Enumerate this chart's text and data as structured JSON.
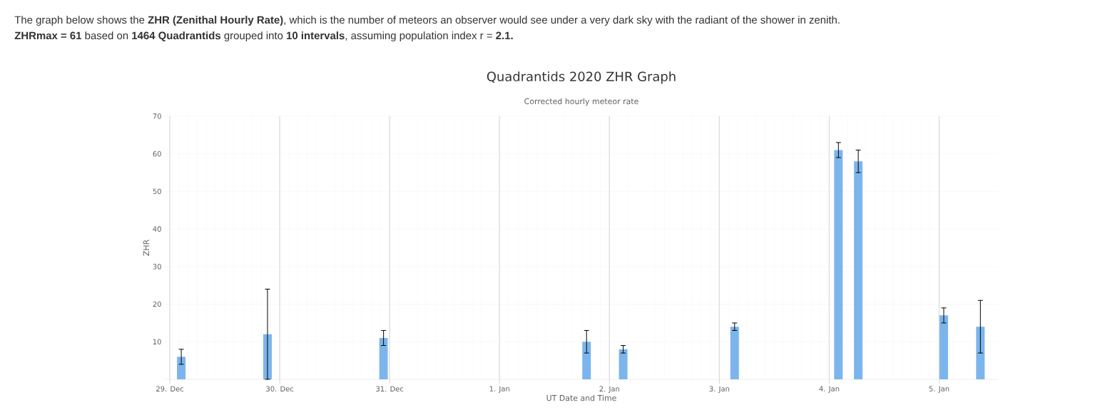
{
  "chart_data": {
    "type": "bar",
    "title": "Quadrantids 2020 ZHR Graph",
    "subtitle": "Corrected hourly meteor rate",
    "xlabel": "UT Date and Time",
    "ylabel": "ZHR",
    "annotations": [
      "The graph below shows the **ZHR (Zenithal Hourly Rate)**, which is the number of meteors an observer would see under a very dark sky with the radiant of the shower in zenith.",
      "**ZHRmax = 61** based on **1464 Quadrantids** grouped into **10 intervals**, assuming population index r = **2.1.**"
    ],
    "x": [
      "2019-12-29T02:30",
      "2019-12-29T21:20",
      "2019-12-30T22:40",
      "2020-01-01T19:00",
      "2020-01-02T03:00",
      "2020-01-03T03:20",
      "2020-01-04T02:00",
      "2020-01-04T06:20",
      "2020-01-05T01:00",
      "2020-01-05T09:00"
    ],
    "values": [
      6,
      12,
      11,
      10,
      8,
      14,
      61,
      58,
      17,
      14
    ],
    "errors": [
      [
        4,
        8
      ],
      [
        0,
        24
      ],
      [
        9,
        13
      ],
      [
        7,
        13
      ],
      [
        7,
        9
      ],
      [
        13,
        15
      ],
      [
        59,
        63
      ],
      [
        55,
        61
      ],
      [
        15,
        19
      ],
      [
        7,
        21
      ]
    ],
    "color": "#7cb5ec",
    "xlim": [
      "2019-12-28T22:45",
      "2020-01-05T13:00"
    ],
    "xticks": [
      {
        "value": "2019-12-29",
        "label": "29. Dec"
      },
      {
        "value": "2019-12-30",
        "label": "30. Dec"
      },
      {
        "value": "2019-12-31",
        "label": "31. Dec"
      },
      {
        "value": "2020-01-01",
        "label": "1. Jan"
      },
      {
        "value": "2020-01-02",
        "label": "2. Jan"
      },
      {
        "value": "2020-01-03",
        "label": "3. Jan"
      },
      {
        "value": "2020-01-04",
        "label": "4. Jan"
      },
      {
        "value": "2020-01-05",
        "label": "5. Jan"
      }
    ],
    "ylim": [
      0,
      70
    ],
    "yticks": [
      10,
      20,
      30,
      40,
      50,
      60,
      70
    ],
    "grid": true
  }
}
